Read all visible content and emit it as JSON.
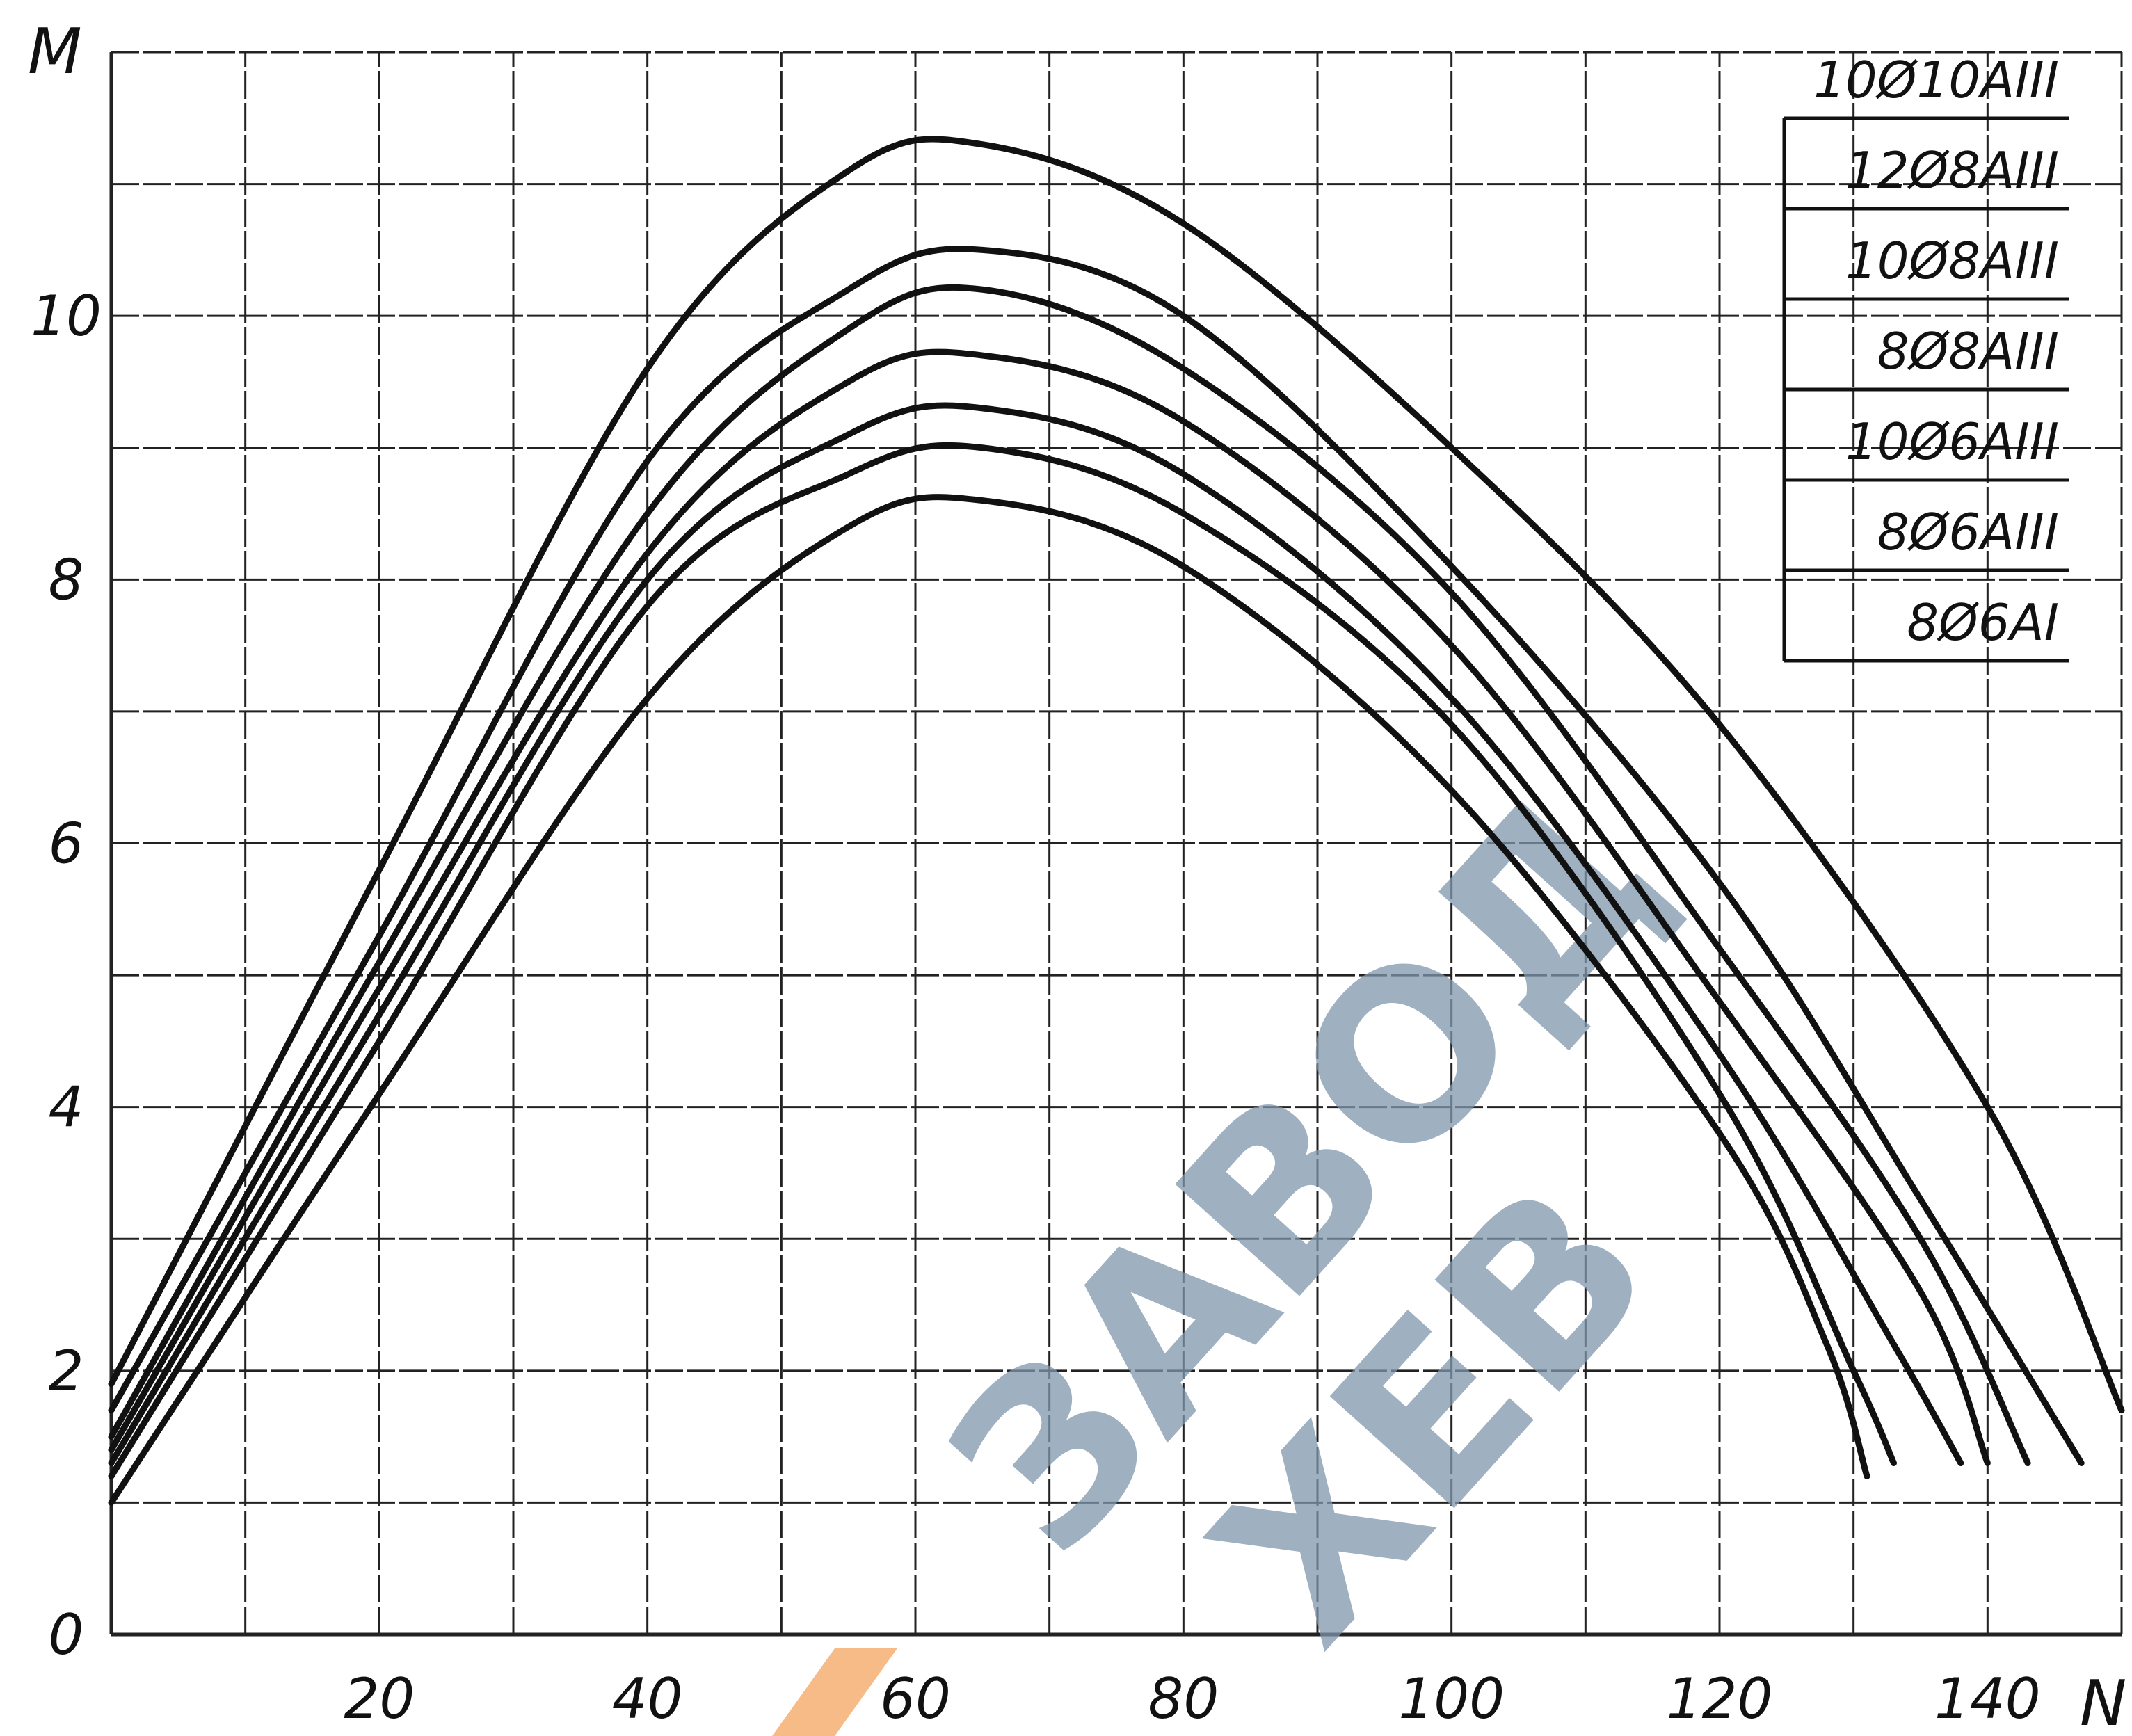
{
  "chart_data": {
    "type": "line",
    "title": "",
    "xlabel": "N",
    "ylabel": "M",
    "xlim": [
      0,
      150
    ],
    "ylim": [
      0,
      12
    ],
    "x_ticks": [
      20,
      40,
      60,
      80,
      100,
      120,
      140
    ],
    "x_tick_labels": [
      "20",
      "40",
      "60",
      "80",
      "100",
      "120",
      "140"
    ],
    "y_ticks": [
      0,
      2,
      4,
      6,
      8,
      10
    ],
    "y_tick_labels": [
      "0",
      "2",
      "4",
      "6",
      "8",
      "10"
    ],
    "grid": true,
    "legend_position": "top-right",
    "series": [
      {
        "name": "10Ø10AIII",
        "x": [
          0,
          20,
          40,
          55,
          65,
          80,
          100,
          120,
          140,
          150
        ],
        "y": [
          1.9,
          5.8,
          9.6,
          11.1,
          11.3,
          10.7,
          9.0,
          6.9,
          4.0,
          1.7
        ]
      },
      {
        "name": "12Ø8AIII",
        "x": [
          0,
          20,
          40,
          55,
          65,
          80,
          100,
          120,
          135,
          147
        ],
        "y": [
          1.7,
          5.3,
          8.9,
          10.2,
          10.5,
          10.0,
          8.1,
          5.7,
          3.3,
          1.3
        ]
      },
      {
        "name": "10Ø8AIII",
        "x": [
          0,
          20,
          40,
          55,
          65,
          80,
          100,
          120,
          135,
          143
        ],
        "y": [
          1.5,
          5.1,
          8.5,
          9.9,
          10.2,
          9.6,
          7.9,
          5.2,
          3.0,
          1.3
        ]
      },
      {
        "name": "8Ø8AIII",
        "x": [
          0,
          20,
          40,
          55,
          65,
          80,
          100,
          120,
          135,
          140
        ],
        "y": [
          1.4,
          4.9,
          8.2,
          9.5,
          9.7,
          9.2,
          7.5,
          4.8,
          2.6,
          1.3
        ]
      },
      {
        "name": "10Ø6AIII",
        "x": [
          0,
          20,
          40,
          55,
          65,
          80,
          100,
          120,
          133,
          138
        ],
        "y": [
          1.3,
          4.7,
          8.0,
          9.1,
          9.3,
          8.8,
          7.1,
          4.4,
          2.2,
          1.3
        ]
      },
      {
        "name": "8Ø6AIII",
        "x": [
          0,
          20,
          40,
          55,
          65,
          80,
          100,
          120,
          130,
          133
        ],
        "y": [
          1.2,
          4.5,
          7.8,
          8.8,
          9.0,
          8.5,
          6.9,
          4.1,
          2.0,
          1.3
        ]
      },
      {
        "name": "8Ø6AI",
        "x": [
          0,
          20,
          40,
          55,
          65,
          80,
          100,
          120,
          128,
          131
        ],
        "y": [
          1.0,
          4.1,
          7.1,
          8.4,
          8.6,
          8.1,
          6.4,
          3.8,
          2.2,
          1.2
        ]
      }
    ],
    "colors": {
      "line": "#111111",
      "grid": "#222222",
      "background": "#ffffff",
      "watermark_blue": "#7f97ad",
      "watermark_orange": "#f4a460"
    }
  },
  "watermark": {
    "line1": "ЗАВОД",
    "line2": "ХЕВ"
  }
}
